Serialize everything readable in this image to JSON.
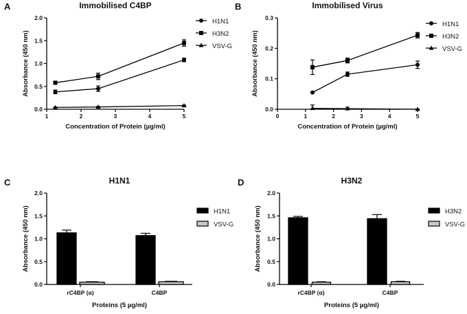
{
  "chart_data": [
    {
      "panel": "A",
      "type": "line",
      "title": "Immobilised C4BP",
      "xlabel": "Concentration of Protein (µg/ml)",
      "ylabel": "Absorbance (450 nm)",
      "xlim": [
        1,
        5
      ],
      "ylim": [
        0,
        2.0
      ],
      "xticks": [
        "1",
        "2",
        "3",
        "4",
        "5"
      ],
      "yticks": [
        "0.0",
        "0.5",
        "1.0",
        "1.5",
        "2.0"
      ],
      "x": [
        1.25,
        2.5,
        5
      ],
      "legend": "right",
      "series": [
        {
          "name": "H1N1",
          "marker": "circle",
          "values": [
            0.38,
            0.45,
            1.08
          ],
          "errors": [
            0.04,
            0.06,
            0.04
          ]
        },
        {
          "name": "H3N2",
          "marker": "square",
          "values": [
            0.58,
            0.72,
            1.45
          ],
          "errors": [
            0.03,
            0.07,
            0.07
          ]
        },
        {
          "name": "VSV-G",
          "marker": "triangle",
          "values": [
            0.04,
            0.05,
            0.08
          ],
          "errors": [
            0.01,
            0.01,
            0.01
          ]
        }
      ]
    },
    {
      "panel": "B",
      "type": "line",
      "title": "Immobilised Virus",
      "xlabel": "Concentration of Protein (µg/ml)",
      "ylabel": "Absorbance (450 nm)",
      "xlim": [
        0,
        5
      ],
      "ylim": [
        0,
        0.3
      ],
      "xticks": [
        "0",
        "1",
        "2",
        "3",
        "4",
        "5"
      ],
      "yticks": [
        "0.0",
        "0.1",
        "0.2",
        "0.3"
      ],
      "x": [
        1.25,
        2.5,
        5
      ],
      "legend": "right",
      "series": [
        {
          "name": "H1N1",
          "marker": "circle",
          "values": [
            0.055,
            0.115,
            0.146
          ],
          "errors": [
            0.002,
            0.007,
            0.012
          ]
        },
        {
          "name": "H3N2",
          "marker": "square",
          "values": [
            0.138,
            0.16,
            0.243
          ],
          "errors": [
            0.024,
            0.008,
            0.009
          ]
        },
        {
          "name": "VSV-G",
          "marker": "triangle",
          "values": [
            0.003,
            0.002,
            0.0
          ],
          "errors": [
            0.011,
            0.005,
            0.001
          ]
        }
      ]
    },
    {
      "panel": "C",
      "type": "bar",
      "title": "H1N1",
      "xlabel": "Proteins (5 µg/ml)",
      "ylabel": "Absorbance (450 nm)",
      "ylim": [
        0,
        2.0
      ],
      "yticks": [
        "0.0",
        "0.5",
        "1.0",
        "1.5",
        "2.0"
      ],
      "categories": [
        "rC4BP (α)",
        "C4BP"
      ],
      "legend": "right",
      "series": [
        {
          "name": "H1N1",
          "color": "#000000",
          "values": [
            1.13,
            1.07
          ],
          "errors": [
            0.06,
            0.05
          ]
        },
        {
          "name": "VSV-G",
          "color": "#c8c8c8",
          "values": [
            0.05,
            0.06
          ],
          "errors": [
            0.01,
            0.01
          ]
        }
      ]
    },
    {
      "panel": "D",
      "type": "bar",
      "title": "H3N2",
      "xlabel": "Proteins (5 µg/ml)",
      "ylabel": "Absorbance (450 nm)",
      "ylim": [
        0,
        2.0
      ],
      "yticks": [
        "0.0",
        "0.5",
        "1.0",
        "1.5",
        "2.0"
      ],
      "categories": [
        "rC4BP (α)",
        "C4BP"
      ],
      "legend": "right",
      "series": [
        {
          "name": "H3N2",
          "color": "#000000",
          "values": [
            1.46,
            1.44
          ],
          "errors": [
            0.03,
            0.09
          ]
        },
        {
          "name": "VSV-G",
          "color": "#c8c8c8",
          "values": [
            0.05,
            0.06
          ],
          "errors": [
            0.01,
            0.01
          ]
        }
      ]
    }
  ]
}
